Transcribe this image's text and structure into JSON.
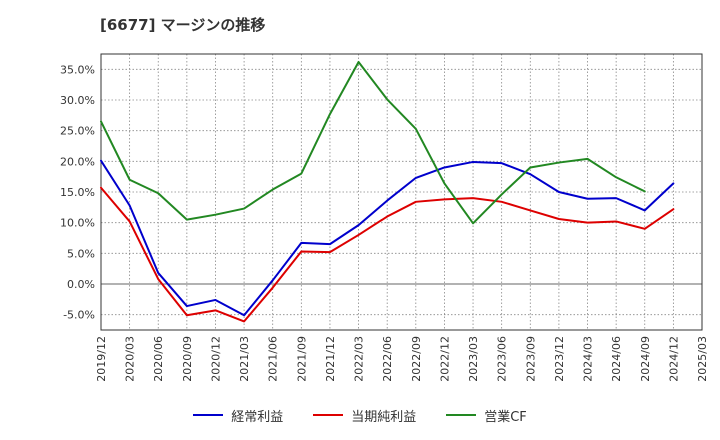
{
  "title": "[6677]  マージンの推移",
  "chart_data": {
    "type": "line",
    "categories": [
      "2019/12",
      "2020/03",
      "2020/06",
      "2020/09",
      "2020/12",
      "2021/03",
      "2021/06",
      "2021/09",
      "2021/12",
      "2022/03",
      "2022/06",
      "2022/09",
      "2022/12",
      "2023/03",
      "2023/06",
      "2023/09",
      "2023/12",
      "2024/03",
      "2024/06",
      "2024/09",
      "2024/12",
      "2025/03"
    ],
    "ylim": [
      -7.5,
      37.5
    ],
    "yticks": [
      -5,
      0,
      5,
      10,
      15,
      20,
      25,
      30,
      35
    ],
    "ytick_labels": [
      "-5.0%",
      "0.0%",
      "5.0%",
      "10.0%",
      "15.0%",
      "20.0%",
      "25.0%",
      "30.0%",
      "35.0%"
    ],
    "grid": true,
    "legend_position": "bottom",
    "series": [
      {
        "name": "経常利益",
        "color": "#0000cc",
        "values": [
          20.1,
          12.8,
          1.8,
          -3.6,
          -2.6,
          -5.1,
          0.6,
          6.7,
          6.5,
          9.6,
          13.6,
          17.3,
          19.0,
          19.9,
          19.7,
          17.9,
          15.0,
          13.9,
          14.0,
          12.0,
          16.4,
          null
        ]
      },
      {
        "name": "当期純利益",
        "color": "#dd0000",
        "values": [
          15.7,
          10.2,
          0.8,
          -5.1,
          -4.3,
          -6.1,
          -0.6,
          5.3,
          5.2,
          8.0,
          11.0,
          13.4,
          13.8,
          14.0,
          13.4,
          12.0,
          10.6,
          10.0,
          10.2,
          9.0,
          12.2,
          null
        ]
      },
      {
        "name": "営業CF",
        "color": "#228822",
        "values": [
          26.5,
          17.0,
          14.8,
          10.5,
          11.3,
          12.3,
          15.4,
          18.0,
          27.7,
          36.2,
          30.1,
          25.3,
          16.4,
          9.9,
          14.6,
          19.0,
          19.8,
          20.4,
          17.4,
          15.1,
          null,
          null
        ]
      }
    ]
  }
}
